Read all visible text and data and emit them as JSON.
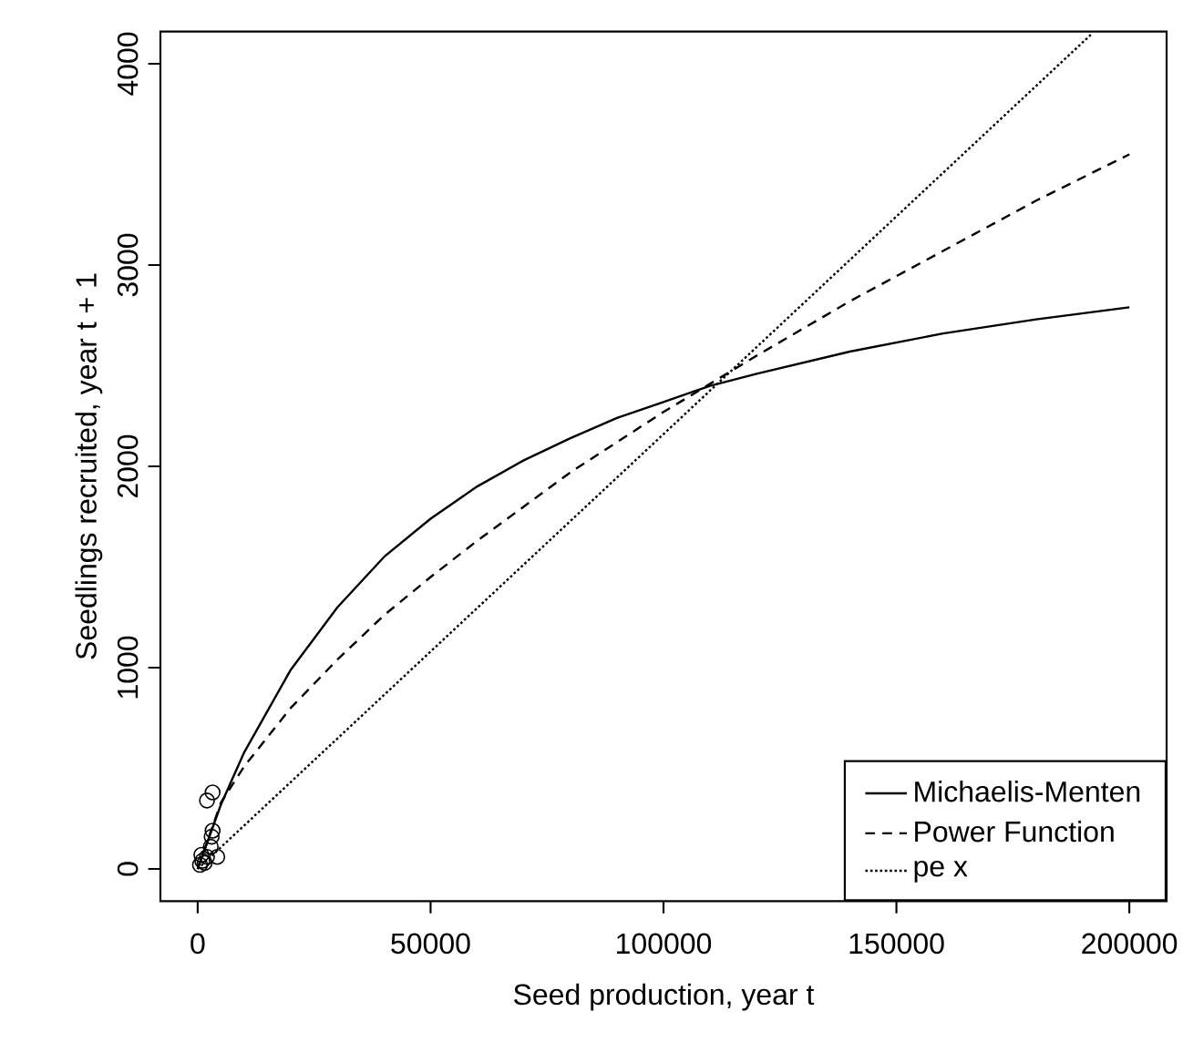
{
  "chart_data": {
    "type": "line",
    "xlabel": "Seed production, year t",
    "ylabel": "Seedlings recruited, year t + 1",
    "xlim": [
      -8000,
      208000
    ],
    "ylim": [
      -160,
      4160
    ],
    "xticks": [
      0,
      50000,
      100000,
      150000,
      200000
    ],
    "yticks": [
      0,
      1000,
      2000,
      3000,
      4000
    ],
    "grid": false,
    "legend": "bottom right",
    "series": [
      {
        "type": "scatter",
        "marker": "circle",
        "color": "#000000",
        "x": [
          500,
          1000,
          1500,
          2000,
          3000,
          3200,
          2000,
          3200,
          4200,
          2800,
          800
        ],
        "values": [
          20,
          40,
          30,
          60,
          160,
          190,
          340,
          380,
          60,
          110,
          70
        ]
      },
      {
        "name": "Michaelis-Menten",
        "color": "#000000",
        "line_style": "solid",
        "x": [
          0,
          5000,
          10000,
          20000,
          30000,
          40000,
          50000,
          60000,
          70000,
          80000,
          90000,
          100000,
          110000,
          120000,
          140000,
          160000,
          180000,
          200000
        ],
        "values": [
          0,
          320,
          580,
          990,
          1300,
          1550,
          1740,
          1900,
          2030,
          2140,
          2240,
          2320,
          2400,
          2460,
          2570,
          2660,
          2730,
          2790
        ]
      },
      {
        "name": "Power Function",
        "color": "#000000",
        "line_style": "dashed",
        "x": [
          0,
          5000,
          10000,
          20000,
          30000,
          40000,
          50000,
          60000,
          70000,
          80000,
          90000,
          100000,
          110000,
          120000,
          140000,
          160000,
          180000,
          200000
        ],
        "values": [
          0,
          330,
          510,
          800,
          1040,
          1260,
          1450,
          1630,
          1800,
          1970,
          2120,
          2270,
          2410,
          2550,
          2820,
          3070,
          3320,
          3550
        ]
      },
      {
        "name": "pe x",
        "color": "#000000",
        "line_style": "dotted",
        "x": [
          0,
          100000,
          192000
        ],
        "values": [
          0,
          2160,
          4150
        ]
      }
    ]
  }
}
